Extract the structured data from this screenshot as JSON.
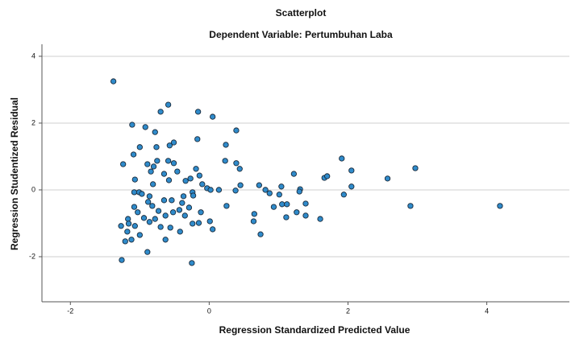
{
  "chart_data": {
    "type": "scatter",
    "title": "Scatterplot",
    "subtitle": "Dependent Variable: Pertumbuhan Laba",
    "x_label": "Regression Standardized Predicted Value",
    "y_label": "Regression Studentized Residual",
    "color": "#2f8bcb",
    "edge_color": "#1a2a3a",
    "grid": true,
    "xlim": [
      -2.41,
      5.19
    ],
    "ylim": [
      -3.35,
      4.36
    ],
    "xticks": [
      -2,
      0,
      2,
      4
    ],
    "yticks": [
      -2,
      0,
      2,
      4
    ],
    "x": [
      -1.38,
      -0.59,
      -0.7,
      -0.16,
      0.05,
      -1.11,
      -0.92,
      -0.78,
      0.39,
      -0.17,
      -0.51,
      -0.57,
      -1.0,
      0.24,
      -0.76,
      -1.09,
      1.91,
      -0.75,
      0.23,
      -0.59,
      -0.51,
      -1.24,
      -0.89,
      0.39,
      -0.8,
      -0.19,
      0.44,
      2.05,
      -0.84,
      -0.46,
      1.22,
      -0.65,
      -0.14,
      1.66,
      1.7,
      2.57,
      2.97,
      -1.07,
      -0.58,
      -0.34,
      -0.27,
      -0.1,
      -0.81,
      0.45,
      0.72,
      1.04,
      2.05,
      -0.03,
      0.02,
      0.81,
      1.31,
      1.3,
      -1.08,
      -1.01,
      -0.24,
      0.14,
      0.38,
      0.87,
      -0.97,
      -0.86,
      -0.37,
      1.94,
      1.01,
      -0.23,
      -0.65,
      -0.54,
      -0.88,
      -0.39,
      -0.82,
      1.05,
      -0.29,
      0.25,
      1.12,
      1.39,
      0.93,
      2.9,
      4.19,
      -1.08,
      -0.43,
      -1.03,
      -0.73,
      -0.52,
      -0.12,
      1.26,
      0.65,
      -0.35,
      -0.63,
      1.39,
      -0.94,
      -1.17,
      -0.78,
      1.11,
      1.6,
      0.01,
      0.64,
      -0.15,
      -0.86,
      -1.16,
      -0.24,
      -1.27,
      -1.07,
      -0.7,
      -0.56,
      0.05,
      -0.42,
      -1.18,
      -1.0,
      0.74,
      -0.63,
      -1.12,
      -1.21,
      -0.89,
      -1.26,
      -0.25
    ],
    "y": [
      3.25,
      2.55,
      2.34,
      2.34,
      2.19,
      1.95,
      1.88,
      1.73,
      1.78,
      1.52,
      1.42,
      1.33,
      1.28,
      1.35,
      1.28,
      1.06,
      0.94,
      0.87,
      0.87,
      0.87,
      0.8,
      0.77,
      0.77,
      0.8,
      0.7,
      0.63,
      0.63,
      0.58,
      0.55,
      0.55,
      0.48,
      0.48,
      0.43,
      0.36,
      0.41,
      0.34,
      0.65,
      0.31,
      0.29,
      0.27,
      0.34,
      0.17,
      0.17,
      0.14,
      0.14,
      0.1,
      0.1,
      0.05,
      0.0,
      0.0,
      0.02,
      -0.05,
      -0.07,
      -0.07,
      -0.07,
      0.0,
      -0.02,
      -0.1,
      -0.12,
      -0.19,
      -0.19,
      -0.14,
      -0.14,
      -0.17,
      -0.31,
      -0.31,
      -0.36,
      -0.39,
      -0.48,
      -0.43,
      -0.53,
      -0.48,
      -0.43,
      -0.41,
      -0.51,
      -0.48,
      -0.48,
      -0.51,
      -0.6,
      -0.67,
      -0.63,
      -0.67,
      -0.67,
      -0.67,
      -0.72,
      -0.77,
      -0.77,
      -0.77,
      -0.84,
      -0.87,
      -0.87,
      -0.82,
      -0.87,
      -0.94,
      -0.94,
      -0.99,
      -0.96,
      -1.01,
      -1.01,
      -1.08,
      -1.08,
      -1.11,
      -1.13,
      -1.18,
      -1.25,
      -1.25,
      -1.35,
      -1.33,
      -1.49,
      -1.49,
      -1.54,
      -1.86,
      -2.1,
      -2.19
    ]
  }
}
